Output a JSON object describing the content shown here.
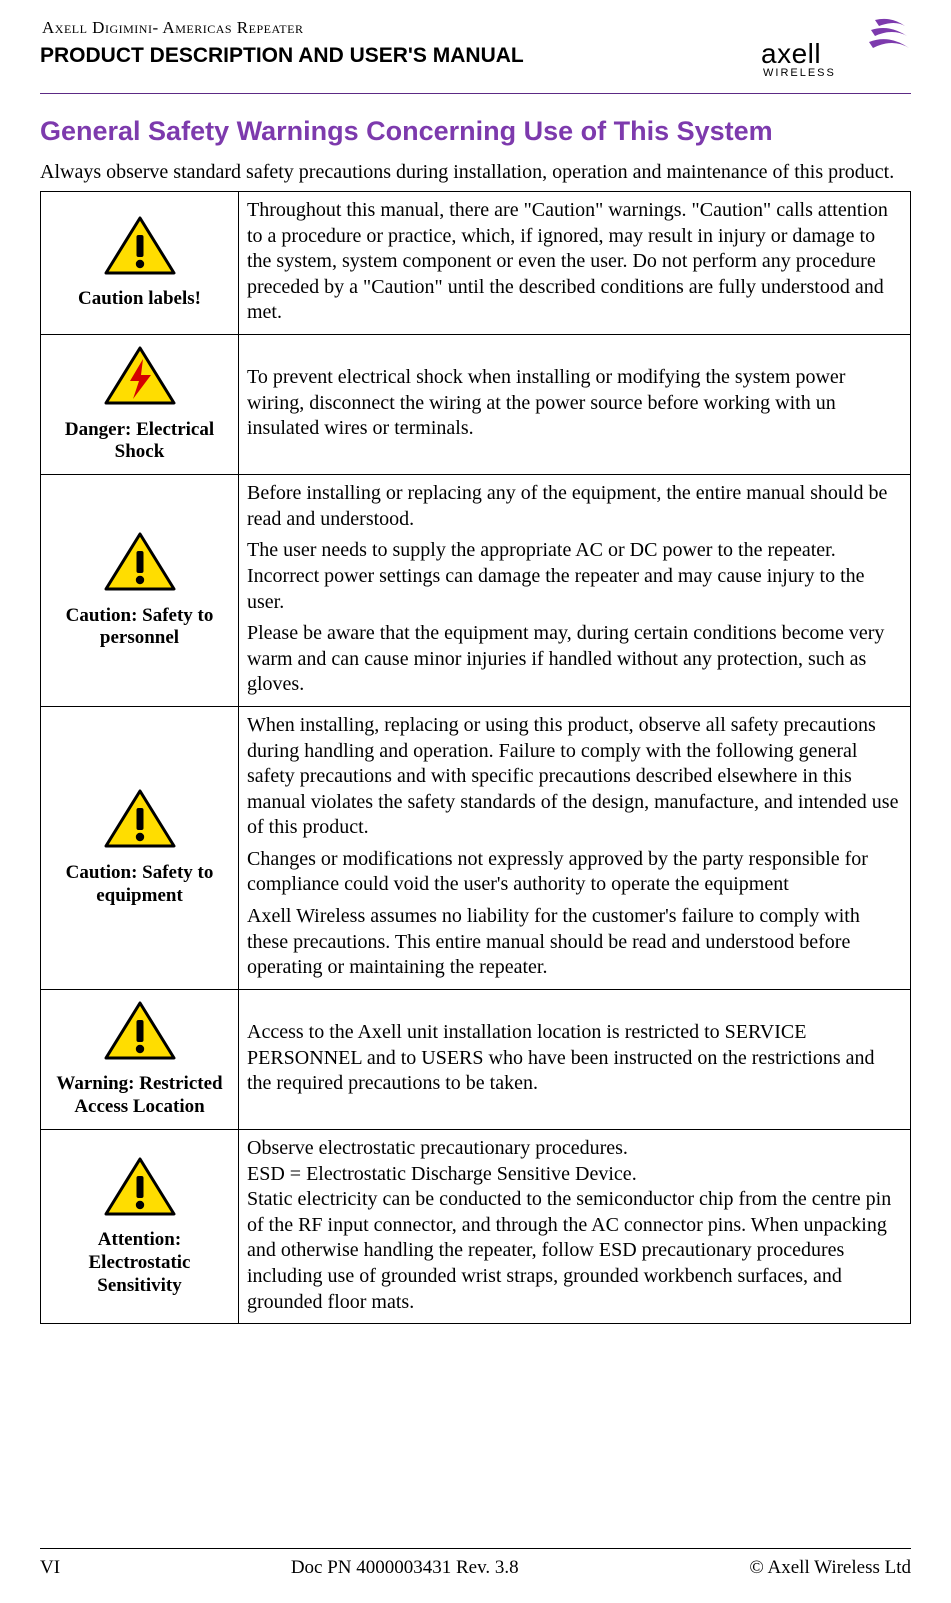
{
  "header": {
    "product_line": "Axell Digimini- Americas Repeater",
    "manual_title": "PRODUCT DESCRIPTION AND USER'S MANUAL",
    "brand_name": "axell",
    "brand_sub": "WIRELESS",
    "brand_color": "#7d3aad",
    "rule_color": "#5c2a85"
  },
  "section": {
    "title": "General Safety Warnings Concerning Use of This System",
    "title_color": "#7d3aad",
    "intro": "Always observe standard safety precautions during installation, operation and maintenance of this product."
  },
  "icons": {
    "triangle_fill": "#ffdd00",
    "triangle_stroke": "#000000",
    "bolt_fill": "#d40000"
  },
  "rows": [
    {
      "icon": "caution",
      "label": "Caution labels!",
      "paragraphs": [
        "Throughout this manual, there are \"Caution\" warnings. \"Caution\" calls attention to a procedure or practice, which, if ignored, may result in injury or damage to the system, system component or even the user. Do not perform any procedure preceded by a \"Caution\" until the described conditions are fully understood and met."
      ]
    },
    {
      "icon": "shock",
      "label": "Danger: Electrical Shock",
      "paragraphs": [
        "To prevent electrical shock when installing or modifying the system power wiring, disconnect the wiring at the power source before working with un insulated wires or terminals."
      ]
    },
    {
      "icon": "caution",
      "label": "Caution: Safety to personnel",
      "paragraphs": [
        "Before installing or replacing any of the equipment, the entire manual should be read and understood.",
        "The user needs to supply the appropriate AC or DC power to the repeater. Incorrect power settings can damage the repeater and may cause injury to the user.",
        "Please be aware that the equipment may, during certain conditions become very warm and can cause minor injuries if handled without any protection, such as gloves."
      ]
    },
    {
      "icon": "caution",
      "label": "Caution: Safety to equipment",
      "paragraphs": [
        "When installing, replacing or using this product, observe all safety precautions during handling and operation. Failure to comply with the following general safety precautions and with specific precautions described elsewhere in this manual violates the safety standards of the design, manufacture, and intended use of this product.",
        "Changes or modifications not expressly approved by the party responsible for compliance could void the user's authority to operate the equipment",
        "Axell Wireless assumes no liability for the customer's failure to comply with these precautions. This entire manual should be read and understood before operating or maintaining the repeater."
      ]
    },
    {
      "icon": "caution",
      "label": "Warning: Restricted Access Location",
      "paragraphs": [
        "Access to the Axell unit installation location is restricted to SERVICE PERSONNEL and to USERS who have been instructed on the restrictions and the required precautions to be taken."
      ]
    },
    {
      "icon": "caution",
      "label": "Attention: Electrostatic Sensitivity",
      "paragraphs": [
        "Observe electrostatic precautionary procedures.\nESD = Electrostatic Discharge Sensitive Device.\nStatic electricity can be conducted to the semiconductor chip from the centre pin of the RF input connector, and through the AC connector pins. When unpacking and otherwise handling the repeater, follow ESD precautionary procedures including use of grounded wrist straps, grounded workbench surfaces, and grounded floor mats."
      ]
    }
  ],
  "footer": {
    "page": "VI",
    "doc": "Doc PN 4000003431 Rev. 3.8",
    "copyright": "© Axell Wireless Ltd"
  }
}
